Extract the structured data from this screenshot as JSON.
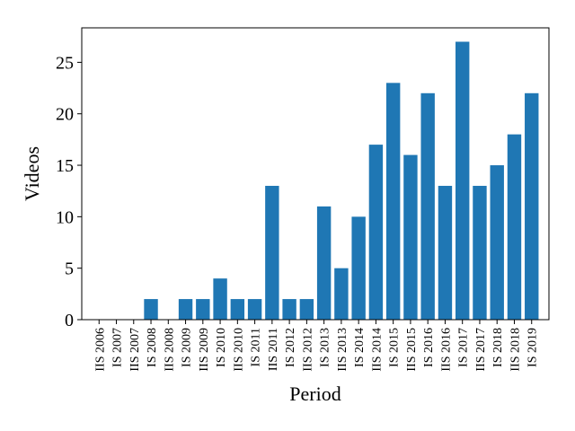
{
  "chart_data": {
    "type": "bar",
    "xlabel": "Period",
    "ylabel": "Videos",
    "ylim": [
      0,
      28.35
    ],
    "yticks": [
      0,
      5,
      10,
      15,
      20,
      25
    ],
    "grid": false,
    "legend": "none",
    "bar_color": "#1f77b4",
    "categories": [
      "IIS 2006",
      "IS 2007",
      "IIS 2007",
      "IS 2008",
      "IIS 2008",
      "IS 2009",
      "IIS 2009",
      "IS 2010",
      "IIS 2010",
      "IS 2011",
      "IIS 2011",
      "IS 2012",
      "IIS 2012",
      "IS 2013",
      "IIS 2013",
      "IS 2014",
      "IIS 2014",
      "IS 2015",
      "IIS 2015",
      "IS 2016",
      "IIS 2016",
      "IS 2017",
      "IIS 2017",
      "IS 2018",
      "IIS 2018",
      "IS 2019"
    ],
    "values": [
      0,
      0,
      0,
      2,
      0,
      2,
      2,
      4,
      2,
      2,
      13,
      2,
      2,
      11,
      5,
      10,
      17,
      23,
      16,
      22,
      13,
      27,
      13,
      15,
      18,
      22
    ]
  }
}
